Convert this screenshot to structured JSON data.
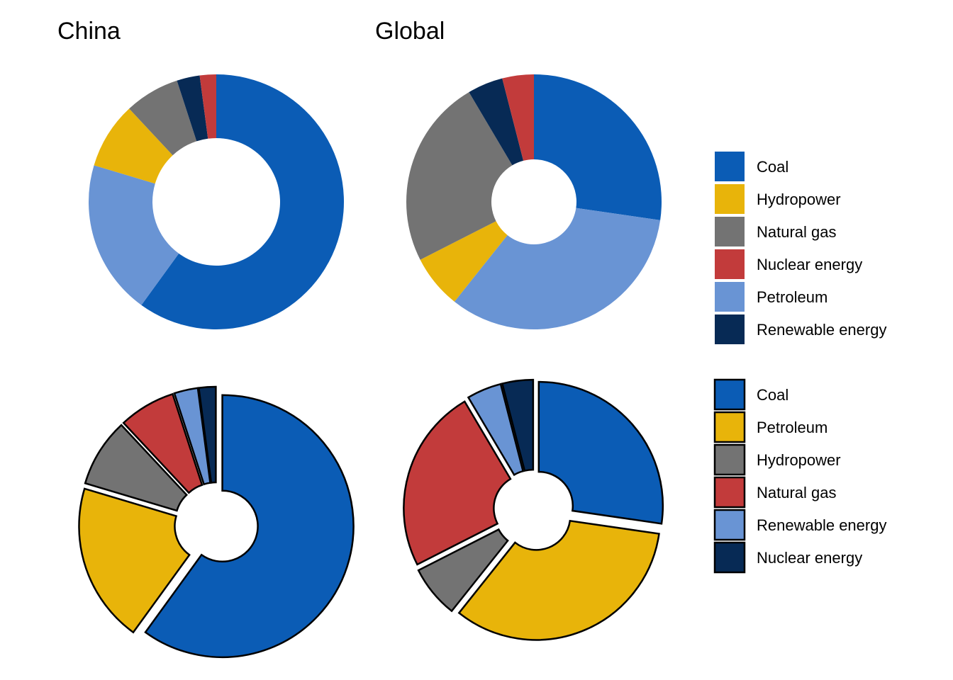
{
  "titles": {
    "china": "China",
    "global": "Global"
  },
  "colors": {
    "Coal": "#0b5cb5",
    "Hydropower": "#e8b40a",
    "Natural gas": "#737373",
    "Nuclear energy": "#c23b3b",
    "Petroleum": "#6994d4",
    "Renewable energy": "#072a55"
  },
  "legend_top": [
    "Coal",
    "Hydropower",
    "Natural gas",
    "Nuclear energy",
    "Petroleum",
    "Renewable energy"
  ],
  "legend_bottom": {
    "labels": [
      "Coal",
      "Petroleum",
      "Hydropower",
      "Natural gas",
      "Renewable energy",
      "Nuclear energy"
    ],
    "colors": [
      "#0b5cb5",
      "#e8b40a",
      "#737373",
      "#c23b3b",
      "#6994d4",
      "#072a55"
    ]
  },
  "chart_data": [
    {
      "type": "pie",
      "style": "donut",
      "title": "China",
      "categories": [
        "Coal",
        "Petroleum",
        "Hydropower",
        "Natural gas",
        "Renewable energy",
        "Nuclear energy"
      ],
      "values": [
        57.7,
        18.9,
        8.1,
        6.7,
        2.8,
        2.0
      ],
      "colors": [
        "#0b5cb5",
        "#6994d4",
        "#e8b40a",
        "#737373",
        "#072a55",
        "#c23b3b"
      ]
    },
    {
      "type": "pie",
      "style": "donut",
      "title": "Global",
      "categories": [
        "Coal",
        "Petroleum",
        "Hydropower",
        "Natural gas",
        "Renewable energy",
        "Nuclear energy"
      ],
      "values": [
        27.3,
        33.4,
        6.8,
        24.0,
        4.5,
        4.0
      ],
      "colors": [
        "#0b5cb5",
        "#6994d4",
        "#e8b40a",
        "#737373",
        "#072a55",
        "#c23b3b"
      ]
    },
    {
      "type": "pie",
      "style": "exploded donut",
      "title": "",
      "categories": [
        "Coal",
        "Petroleum",
        "Hydropower",
        "Natural gas",
        "Renewable energy",
        "Nuclear energy"
      ],
      "values": [
        57.7,
        18.9,
        8.1,
        6.7,
        2.8,
        2.0
      ],
      "colors": [
        "#0b5cb5",
        "#e8b40a",
        "#737373",
        "#c23b3b",
        "#6994d4",
        "#072a55"
      ]
    },
    {
      "type": "pie",
      "style": "exploded donut",
      "title": "",
      "categories": [
        "Coal",
        "Petroleum",
        "Hydropower",
        "Natural gas",
        "Renewable energy",
        "Nuclear energy"
      ],
      "values": [
        27.3,
        33.4,
        6.8,
        24.0,
        4.5,
        4.0
      ],
      "colors": [
        "#0b5cb5",
        "#e8b40a",
        "#737373",
        "#c23b3b",
        "#6994d4",
        "#072a55"
      ]
    }
  ]
}
